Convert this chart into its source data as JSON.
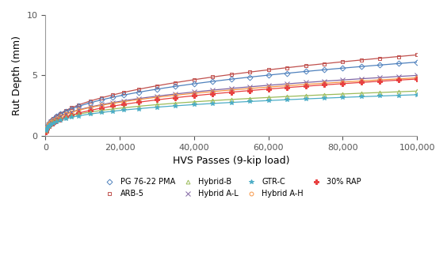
{
  "title": "",
  "xlabel": "HVS Passes (9-kip load)",
  "ylabel": "Rut Depth (mm)",
  "xlim": [
    0,
    100000
  ],
  "ylim": [
    0,
    10
  ],
  "xticks": [
    0,
    20000,
    40000,
    60000,
    80000,
    100000
  ],
  "yticks": [
    0,
    5,
    10
  ],
  "series": [
    {
      "label": "ARB-5",
      "color": "#c0504d",
      "marker": "s",
      "markersize": 3.5,
      "linewidth": 0.9,
      "open_marker": true,
      "y_end": 6.7,
      "b": 0.4
    },
    {
      "label": "PG 76-22 PMA",
      "color": "#4f81bd",
      "marker": "D",
      "markersize": 3.5,
      "linewidth": 0.9,
      "open_marker": true,
      "y_end": 6.1,
      "b": 0.38
    },
    {
      "label": "Hybrid A-L",
      "color": "#8064a2",
      "marker": "x",
      "markersize": 4,
      "linewidth": 0.9,
      "open_marker": false,
      "y_end": 5.0,
      "b": 0.35
    },
    {
      "label": "Hybrid A-H",
      "color": "#f79646",
      "marker": "o",
      "markersize": 3.5,
      "linewidth": 0.9,
      "open_marker": true,
      "y_end": 4.8,
      "b": 0.34
    },
    {
      "label": "30% RAP",
      "color": "#e84040",
      "marker": "P",
      "markersize": 4,
      "linewidth": 0.9,
      "open_marker": false,
      "y_end": 4.7,
      "b": 0.38
    },
    {
      "label": "Hybrid-B",
      "color": "#9bbb59",
      "marker": "^",
      "markersize": 3.5,
      "linewidth": 0.9,
      "open_marker": true,
      "y_end": 3.7,
      "b": 0.3
    },
    {
      "label": "GTR-C",
      "color": "#4bacc6",
      "marker": "*",
      "markersize": 4,
      "linewidth": 0.9,
      "open_marker": false,
      "y_end": 3.4,
      "b": 0.3
    }
  ],
  "marker_positions": [
    100,
    200,
    400,
    700,
    1000,
    1500,
    2000,
    3000,
    4000,
    5500,
    7000,
    9000,
    12000,
    15000,
    18000,
    21000,
    25000,
    30000,
    35000,
    40000,
    45000,
    50000,
    55000,
    60000,
    65000,
    70000,
    75000,
    80000,
    85000,
    90000,
    95000,
    100000
  ],
  "background_color": "#ffffff",
  "legend_fontsize": 7.0,
  "axis_fontsize": 9,
  "tick_fontsize": 8,
  "legend_order": [
    1,
    0,
    5,
    2,
    6,
    3,
    4
  ]
}
